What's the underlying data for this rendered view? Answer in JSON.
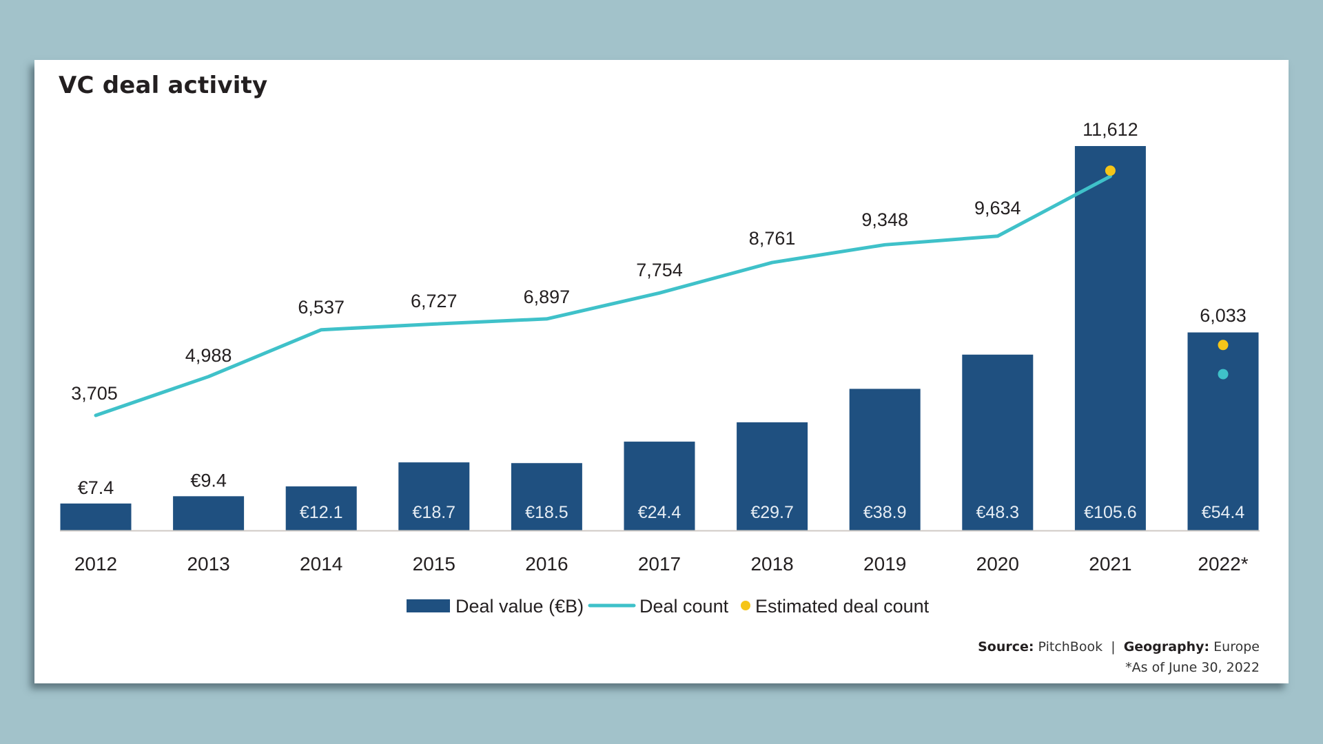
{
  "page": {
    "background_color": "#a2c2ca",
    "card_color": "#ffffff"
  },
  "footer": {
    "source_label": "Source:",
    "source_value": "PitchBook",
    "separator": "|",
    "geography_label": "Geography:",
    "geography_value": "Europe",
    "note": "*As of June 30, 2022"
  },
  "chart_data": {
    "type": "bar+line",
    "title": "VC deal activity",
    "xlabel": "",
    "ylabel": "",
    "categories": [
      "2012",
      "2013",
      "2014",
      "2015",
      "2016",
      "2017",
      "2018",
      "2019",
      "2020",
      "2021",
      "2022*"
    ],
    "series": [
      {
        "name": "Deal value (€B)",
        "type": "bar",
        "color": "#1f5080",
        "values": [
          7.4,
          9.4,
          12.1,
          18.7,
          18.5,
          24.4,
          29.7,
          38.9,
          48.3,
          105.6,
          54.4
        ],
        "labels": [
          "€7.4",
          "€9.4",
          "€12.1",
          "€18.7",
          "€18.5",
          "€24.4",
          "€29.7",
          "€38.9",
          "€48.3",
          "€105.6",
          "€54.4"
        ]
      },
      {
        "name": "Deal count",
        "type": "line",
        "color": "#3fc1c9",
        "values": [
          3705,
          4988,
          6537,
          6727,
          6897,
          7754,
          8761,
          9348,
          9634,
          11612,
          null
        ],
        "labels": [
          "3,705",
          "4,988",
          "6,537",
          "6,727",
          "6,897",
          "7,754",
          "8,761",
          "9,348",
          "9,634",
          "11,612",
          "6,033"
        ],
        "point_2022": 5070
      },
      {
        "name": "Estimated deal count",
        "type": "scatter",
        "color": "#f5c518",
        "values": [
          null,
          null,
          null,
          null,
          null,
          null,
          null,
          null,
          null,
          11800,
          6033
        ]
      }
    ],
    "ylim_value": [
      0,
      106
    ],
    "ylim_count": [
      0,
      17440
    ],
    "grid": false,
    "legend": {
      "position": "bottom-center",
      "items": [
        "Deal value (€B)",
        "Deal count",
        "Estimated deal count"
      ]
    }
  }
}
